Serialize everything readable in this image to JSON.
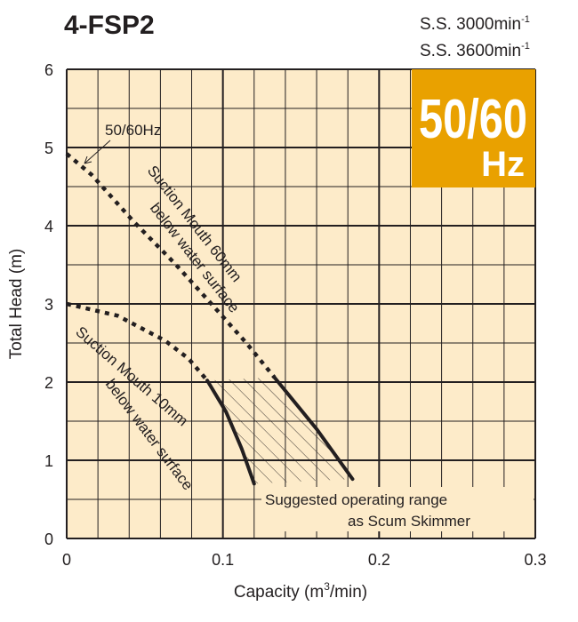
{
  "chart_data": {
    "type": "line",
    "title": "4-FSP2",
    "speed_labels": [
      {
        "text": "S.S. 3000min",
        "sup": "-1"
      },
      {
        "text": "S.S. 3600min",
        "sup": "-1"
      }
    ],
    "badge": {
      "main": "50/60",
      "sub": "Hz",
      "color": "#E9A100"
    },
    "xlabel": "Capacity (m",
    "xlabel_sup": "3",
    "xlabel_end": "/min)",
    "ylabel": "Total Head (m)",
    "xlim": [
      0,
      0.3
    ],
    "ylim": [
      0,
      6
    ],
    "x_ticks": [
      "0",
      "0.1",
      "0.2",
      "0.3"
    ],
    "y_ticks": [
      "0",
      "1",
      "2",
      "3",
      "4",
      "5",
      "6"
    ],
    "x_minor_step": 0.02,
    "y_minor_step": 0.5,
    "grid": true,
    "background_color": "#FDEBC9",
    "series": [
      {
        "name": "Suction Mouth 60mm below water surface",
        "dashed": [
          [
            0,
            4.92
          ],
          [
            0.016,
            4.65
          ],
          [
            0.043,
            4.05
          ],
          [
            0.07,
            3.5
          ],
          [
            0.094,
            2.97
          ],
          [
            0.115,
            2.5
          ],
          [
            0.133,
            2.06
          ]
        ],
        "solid": [
          [
            0.133,
            2.06
          ],
          [
            0.16,
            1.4
          ],
          [
            0.183,
            0.76
          ]
        ]
      },
      {
        "name": "Suction Mouth 10mm below water surface",
        "dashed": [
          [
            0,
            3.0
          ],
          [
            0.0325,
            2.85
          ],
          [
            0.063,
            2.53
          ],
          [
            0.078,
            2.3
          ],
          [
            0.09,
            2.02
          ]
        ],
        "solid": [
          [
            0.09,
            2.02
          ],
          [
            0.102,
            1.62
          ],
          [
            0.112,
            1.15
          ],
          [
            0.12,
            0.7
          ]
        ]
      }
    ],
    "annotations": {
      "hz_label": "50/60Hz",
      "s60_line1": "Suction Mouth 60mm",
      "s60_line2": "below water surface",
      "s10_line1": "Suction Mouth 10mm",
      "s10_line2": "below water surface",
      "range_line1": "Suggested operating range",
      "range_line2": "as Scum Skimmer"
    }
  }
}
